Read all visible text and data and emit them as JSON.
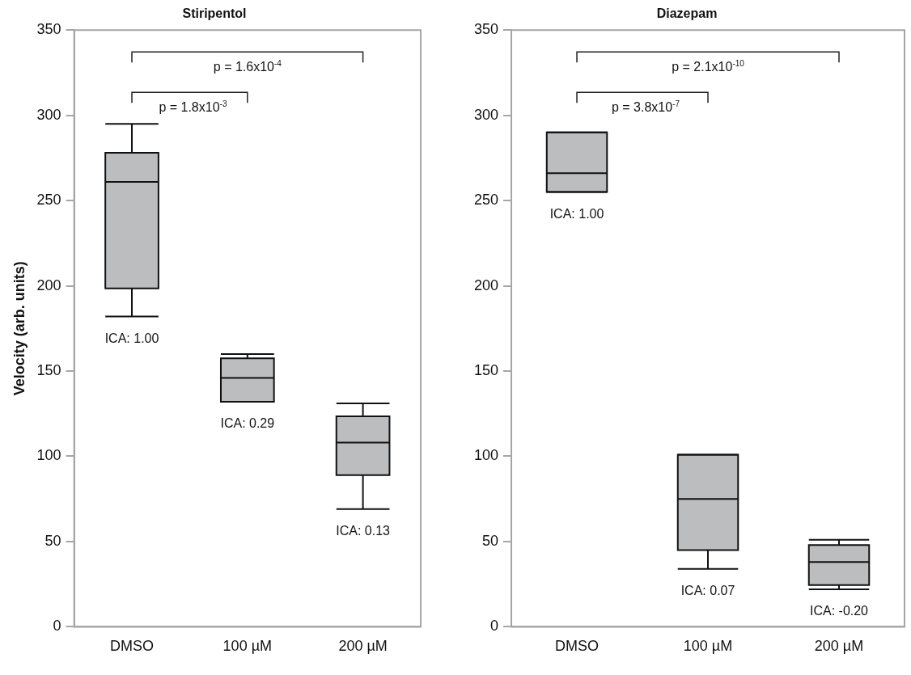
{
  "chart_data": [
    {
      "type": "box",
      "title": "Stiripentol",
      "ylabel": "Velocity (arb. units)",
      "categories": [
        "DMSO",
        "100 µM",
        "200 µM"
      ],
      "color": "#bcbdbf",
      "boxes": [
        {
          "low": 182,
          "q1": 198.5,
          "median": 261,
          "q3": 278,
          "high": 295
        },
        {
          "low": 132,
          "q1": 132,
          "median": 146,
          "q3": 157.5,
          "high": 160
        },
        {
          "low": 69,
          "q1": 89,
          "median": 108,
          "q3": 123.5,
          "high": 131
        }
      ],
      "ylim": [
        0,
        350
      ],
      "yticks": [
        0,
        50,
        100,
        150,
        200,
        250,
        300,
        350
      ],
      "grid": false,
      "legend": false,
      "annotations": [
        "p = 1.6x10$^{-4}$",
        "p = 1.8x10$^{-3}$",
        {
          "text": "ICA: 1.00",
          "x": "DMSO",
          "y": 182
        },
        {
          "text": "ICA: 0.29",
          "x": "100 µM",
          "y": 132
        },
        {
          "text": "ICA: 0.13",
          "x": "200 µM",
          "y": 69
        }
      ]
    },
    {
      "type": "box",
      "title": "Diazepam",
      "categories": [
        "DMSO",
        "100 µM",
        "200 µM"
      ],
      "color": "#bcbdbf",
      "boxes": [
        {
          "low": 255,
          "q1": 255,
          "median": 266,
          "q3": 290,
          "high": 290
        },
        {
          "low": 34,
          "q1": 45,
          "median": 75,
          "q3": 101,
          "high": 101
        },
        {
          "low": 22,
          "q1": 24.5,
          "median": 38,
          "q3": 48,
          "high": 51
        }
      ],
      "ylim": [
        0,
        350
      ],
      "yticks": [
        0,
        50,
        100,
        150,
        200,
        250,
        300,
        350
      ],
      "grid": false,
      "legend": false,
      "annotations": [
        "p = 2.1x10$^{-10}$",
        "p = 3.8x10$^{-7}$",
        {
          "text": "ICA: 1.00",
          "x": "DMSO",
          "y": 255
        },
        {
          "text": "ICA: 0.07",
          "x": "100 µM",
          "y": 34
        },
        {
          "text": "ICA: -0.20",
          "x": "200 µM",
          "y": 22
        }
      ]
    }
  ]
}
